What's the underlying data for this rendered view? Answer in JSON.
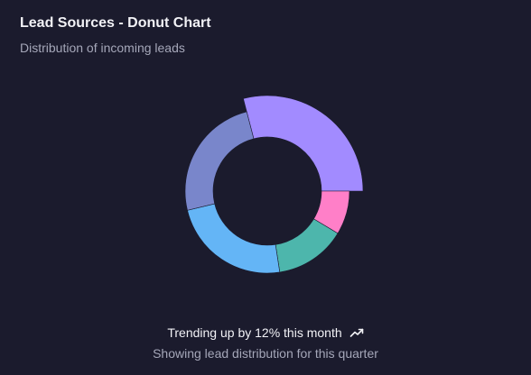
{
  "card": {
    "title": "Lead Sources - Donut Chart",
    "subtitle": "Distribution of incoming leads"
  },
  "footer": {
    "trend_text": "Trending up by 12% this month",
    "trend_icon": "trending-up-icon",
    "note": "Showing lead distribution for this quarter"
  },
  "chart_data": {
    "type": "pie",
    "variant": "donut",
    "title": "Lead Sources - Donut Chart",
    "legend": "none",
    "slices": [
      {
        "value": 27,
        "color": "#a28bff",
        "highlighted": true
      },
      {
        "value": 8,
        "color": "#ff7fc8",
        "highlighted": false
      },
      {
        "value": 13,
        "color": "#4db6ac",
        "highlighted": false
      },
      {
        "value": 22,
        "color": "#64b5f6",
        "highlighted": false
      },
      {
        "value": 23,
        "color": "#7986cb",
        "highlighted": false
      }
    ]
  },
  "colors": {
    "background": "#1b1b2d",
    "title": "#f2f2f6",
    "muted": "#a5a7b9"
  }
}
